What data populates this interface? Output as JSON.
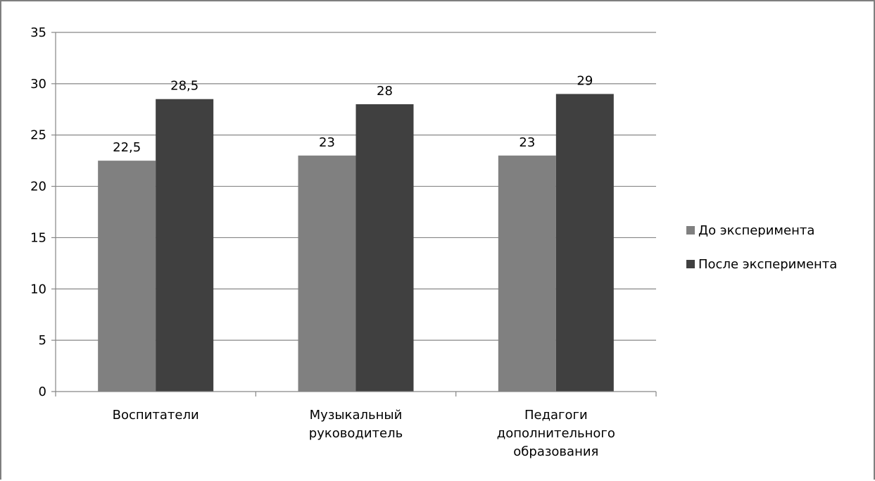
{
  "chart_data": {
    "type": "bar",
    "categories": [
      [
        "Воспитатели"
      ],
      [
        "Музыкальный",
        "руководитель"
      ],
      [
        "Педагоги",
        "дополнительного",
        "образования"
      ]
    ],
    "series": [
      {
        "name": "До эксперимента",
        "values": [
          22.5,
          23,
          23
        ],
        "labels": [
          "22,5",
          "23",
          "23"
        ],
        "color": "#808080"
      },
      {
        "name": "После эксперимента",
        "values": [
          28.5,
          28,
          29
        ],
        "labels": [
          "28,5",
          "28",
          "29"
        ],
        "color": "#404040"
      }
    ],
    "ylim": [
      0,
      35
    ],
    "yticks": [
      0,
      5,
      10,
      15,
      20,
      25,
      30,
      35
    ],
    "grid": true,
    "legend_position": "right",
    "gridline_color": "#868686",
    "axis_color": "#868686"
  }
}
